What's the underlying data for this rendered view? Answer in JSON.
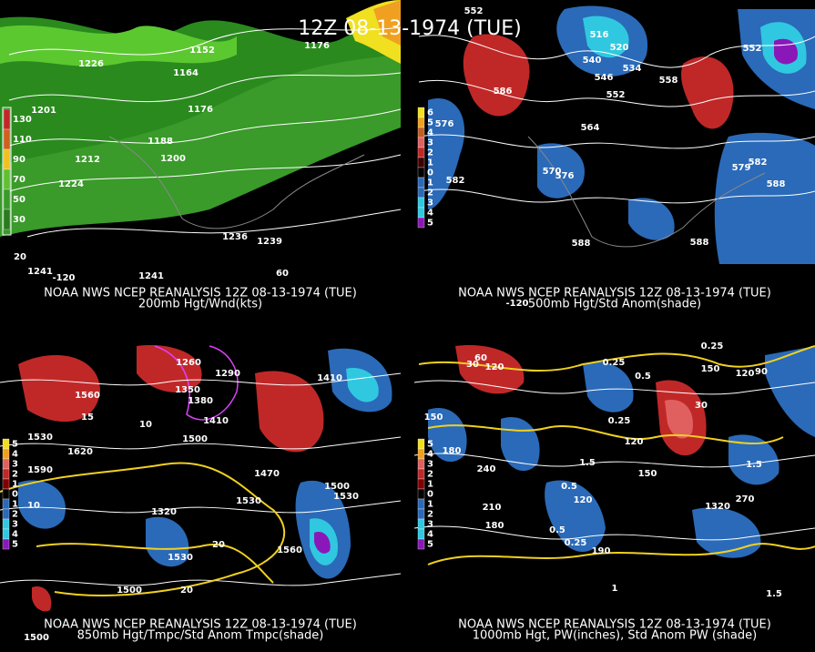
{
  "title": "12Z 08-13-1974 (TUE)",
  "panels": [
    {
      "caption": "NOAA NWS NCEP REANALYSIS 12Z 08-13-1974 (TUE)",
      "subtitle": "200mb Hgt/Wnd(kts)",
      "legend": [
        "130",
        "110",
        "90",
        "70",
        "50",
        "30"
      ],
      "labels": [
        "1152",
        "1164",
        "1176",
        "1176",
        "1188",
        "1200",
        "1212",
        "1224",
        "1236",
        "1239",
        "1201",
        "1226",
        "1241",
        "1241",
        "20",
        "-120",
        "60"
      ]
    },
    {
      "caption": "NOAA NWS NCEP REANALYSIS 12Z 08-13-1974 (TUE)",
      "subtitle": "500mb Hgt/Std Anom(shade)",
      "legend": [
        "6",
        "5",
        "4",
        "3",
        "2",
        "1",
        "0",
        "1",
        "2",
        "3",
        "4",
        "5"
      ],
      "labels": [
        "552",
        "516",
        "520",
        "540",
        "534",
        "546",
        "552",
        "558",
        "564",
        "576",
        "582",
        "570",
        "576",
        "582",
        "588",
        "588",
        "588",
        "552",
        "586",
        "579",
        "-120"
      ]
    },
    {
      "caption": "NOAA NWS NCEP REANALYSIS 12Z 08-13-1974 (TUE)",
      "subtitle": "850mb Hgt/Tmpc/Std Anom Tmpc(shade)",
      "legend": [
        "5",
        "4",
        "3",
        "2",
        "1",
        "0",
        "1",
        "2",
        "3",
        "4",
        "5"
      ],
      "labels": [
        "1560",
        "1530",
        "1620",
        "1590",
        "1500",
        "1410",
        "1380",
        "1350",
        "1290",
        "1260",
        "1470",
        "1530",
        "1320",
        "1500",
        "1530",
        "1560",
        "1530",
        "1500",
        "1500",
        "10",
        "20",
        "20",
        "1410",
        "15",
        "10"
      ]
    },
    {
      "caption": "NOAA NWS NCEP REANALYSIS 12Z 08-13-1974 (TUE)",
      "subtitle": "1000mb Hgt, PW(inches), Std Anom PW (shade)",
      "legend": [
        "5",
        "4",
        "3",
        "2",
        "1",
        "0",
        "1",
        "2",
        "3",
        "4",
        "5"
      ],
      "labels": [
        "60",
        "120",
        "30",
        "0.25",
        "0.25",
        "0.5",
        "0.25",
        "120",
        "150",
        "180",
        "240",
        "210",
        "180",
        "270",
        "1320",
        "150",
        "1.5",
        "1.5",
        "1.5",
        "0.5",
        "0.25",
        "0.5",
        "120",
        "190",
        "150",
        "120",
        "90",
        "30",
        "1"
      ]
    }
  ]
}
